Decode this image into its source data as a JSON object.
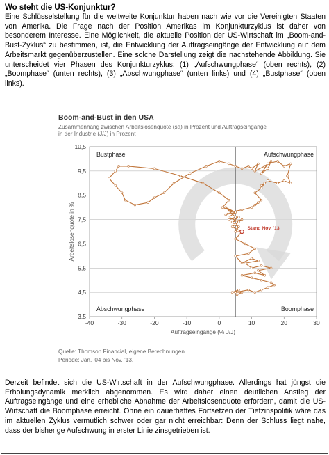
{
  "heading": "Wo steht die US-Konjunktur?",
  "intro": "Eine Schlüsselstellung für die weltweite Konjunktur haben nach wie vor die Vereinigten Staaten von Amerika. Die Frage nach der Position Amerikas im Konjunkturzyklus ist daher von besonderem Interesse. Eine Möglichkeit, die aktuelle Position der US-Wirtschaft im „Boom-and-Bust-Zyklus“ zu bestimmen, ist, die Entwicklung der Auftragseingänge der Entwicklung auf dem Arbeitsmarkt gegenüberzustellen. Eine solche Darstellung zeigt die nachstehende Abbildung. Sie unterscheidet vier Phasen des Konjunkturzyklus: (1) „Aufschwungphase“ (oben rechts), (2) „Boomphase“ (unten rechts), (3) „Abschwungphase“ (unten links) und (4) „Bustphase“ (oben links).",
  "outro": "Derzeit befindet sich die US-Wirtschaft in der Aufschwungphase. Allerdings hat jüngst die Erholungsdynamik merklich abgenommen. Es wird daher einen deutlichen Anstieg der Auftragseingänge und eine erhebliche Abnahme der Arbeitslosenquote erfordern, damit die US-Wirtschaft die Boomphase erreicht. Ohne ein dauerhaftes Fortsetzen der Tiefzinspolitik wäre das im aktuellen Zyklus vermutlich schwer oder gar nicht erreichbar: Denn der Schluss liegt nahe, dass der bisherige Aufschwung in erster Linie zinsgetrieben ist.",
  "source": {
    "line1": "Quelle: Thomson Financial, eigene Berechnungen.",
    "line2": "Periode: Jan. ’04 bis Nov. ’13."
  },
  "colors": {
    "line": "#c0753a",
    "marker_fill": "#ffffff",
    "arrow": "#d8d8d8",
    "current": "#c0392b"
  },
  "chart_data": {
    "type": "line",
    "title": "Boom-and-Bust in den USA",
    "subtitle": "Zusammenhang zwischen Arbeitslosenquote (sa) in Prozent und Auftragseingänge in der Industrie (J/J) in Prozent",
    "xlabel": "Auftragseingänge (% J/J)",
    "ylabel": "Arbeitslosenquote in %",
    "xlim": [
      -40,
      30
    ],
    "ylim": [
      3.5,
      10.5
    ],
    "xticks": [
      "-40",
      "-30",
      "-20",
      "-10",
      "0",
      "10",
      "20",
      "30"
    ],
    "yticks": [
      "3,5",
      "4,5",
      "5,5",
      "6,5",
      "7,5",
      "8,5",
      "9,5",
      "10,5"
    ],
    "grid": "horizontal",
    "crosshair_x": 5,
    "quadrants": {
      "top_left": "Bustphase",
      "top_right": "Aufschwungphase",
      "bottom_left": "Abschwungphase",
      "bottom_right": "Boomphase"
    },
    "annotation": "Stand Nov. '13",
    "series": [
      {
        "x": [
          5.5,
          7,
          4,
          6,
          5,
          9,
          11,
          13,
          15,
          17,
          16,
          13,
          10,
          7,
          11,
          14,
          12,
          16,
          13,
          10,
          8,
          12,
          10,
          7,
          5,
          9,
          11,
          8,
          5,
          7,
          4,
          6,
          3,
          5,
          1,
          3,
          0,
          -5,
          -12,
          -20,
          -28,
          -31,
          -32,
          -34,
          -32,
          -30,
          -29,
          -26,
          -22,
          -20,
          -17,
          -14,
          -9,
          -4,
          0,
          3,
          5,
          7,
          9,
          10,
          12,
          11,
          14,
          16,
          15,
          13,
          15,
          18,
          20,
          22,
          21,
          22,
          20,
          18,
          15,
          13,
          14,
          13,
          11,
          13,
          12,
          11,
          12,
          10,
          7,
          3,
          2,
          5,
          2,
          5,
          3,
          6,
          4,
          7,
          5,
          6,
          4.5,
          6,
          5,
          7
        ],
        "y": [
          4.4,
          4.5,
          4.5,
          4.6,
          4.5,
          4.6,
          4.5,
          4.6,
          4.7,
          4.8,
          4.9,
          5.0,
          5.1,
          5.2,
          5.3,
          5.2,
          5.4,
          5.5,
          5.6,
          5.5,
          5.7,
          5.8,
          5.9,
          5.7,
          6.0,
          6.1,
          6.3,
          6.5,
          6.7,
          7.0,
          7.2,
          7.4,
          7.6,
          7.8,
          8.0,
          8.3,
          8.6,
          9.0,
          9.3,
          9.6,
          9.7,
          9.7,
          9.5,
          9.2,
          8.9,
          8.6,
          8.3,
          8.1,
          8.2,
          8.4,
          8.6,
          9.0,
          9.4,
          9.7,
          9.9,
          9.8,
          9.7,
          9.6,
          9.7,
          9.6,
          9.8,
          9.5,
          9.7,
          9.9,
          9.6,
          9.4,
          9.8,
          9.9,
          9.7,
          9.8,
          9.3,
          9.0,
          9.1,
          9.0,
          9.1,
          8.9,
          9.0,
          8.8,
          8.6,
          8.3,
          8.2,
          8.1,
          8.2,
          8.0,
          7.9,
          7.8,
          7.7,
          7.8,
          8.0,
          7.6,
          7.5,
          7.6,
          7.4,
          7.5,
          7.3,
          7.2,
          7.3,
          7.2,
          7.0,
          7.0
        ]
      }
    ]
  }
}
